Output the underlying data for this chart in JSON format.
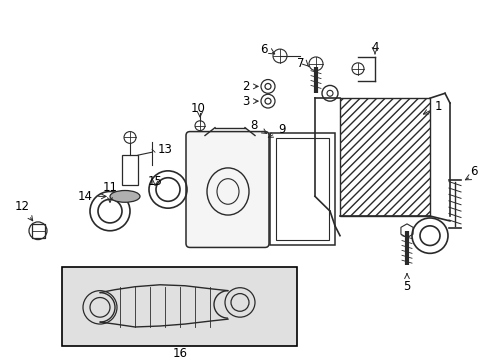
{
  "bg_color": "#ffffff",
  "fig_width": 4.89,
  "fig_height": 3.6,
  "dpi": 100,
  "line_color": "#2a2a2a",
  "label_color": "#000000",
  "label_fontsize": 8.5,
  "box16_fill": "#e0e0e0"
}
